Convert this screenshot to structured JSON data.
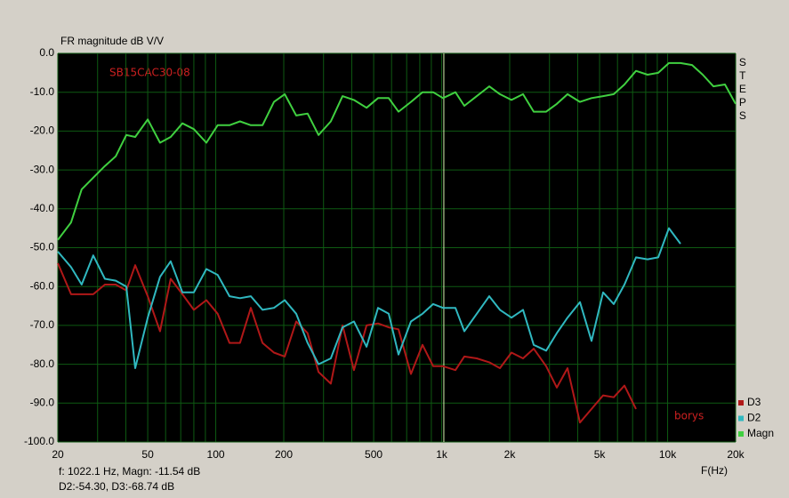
{
  "chart_data": {
    "type": "line",
    "title": "FR magnitude dB V/V",
    "xlabel": "F(Hz)",
    "right_label": "STEPS",
    "annotations": [
      "SB15CAC30-08",
      "borys"
    ],
    "status": [
      "f: 1022.1 Hz, Magn: -11.54 dB",
      "D2:-54.30, D3:-68.74 dB"
    ],
    "cursor": 1022.1,
    "xscale": "log",
    "xlim": [
      20,
      20000
    ],
    "ylim": [
      -100,
      0
    ],
    "xticks": [
      20,
      50,
      100,
      200,
      500,
      {
        "value": 1000,
        "label": "1k"
      },
      {
        "value": 2000,
        "label": "2k"
      },
      {
        "value": 5000,
        "label": "5k"
      },
      {
        "value": 10000,
        "label": "10k"
      },
      {
        "value": 20000,
        "label": "20k"
      }
    ],
    "xminorticks": [
      30,
      40,
      60,
      70,
      80,
      90,
      300,
      400,
      600,
      700,
      800,
      900,
      3000,
      4000,
      6000,
      7000,
      8000,
      9000
    ],
    "yticks": [
      {
        "value": 0,
        "label": "0.0"
      },
      {
        "value": -10,
        "label": "-10.0"
      },
      {
        "value": -20,
        "label": "-20.0"
      },
      {
        "value": -30,
        "label": "-30.0"
      },
      {
        "value": -40,
        "label": "-40.0"
      },
      {
        "value": -50,
        "label": "-50.0"
      },
      {
        "value": -60,
        "label": "-60.0"
      },
      {
        "value": -70,
        "label": "-70.0"
      },
      {
        "value": -80,
        "label": "-80.0"
      },
      {
        "value": -90,
        "label": "-90.0"
      },
      {
        "value": -100,
        "label": "-100.0"
      }
    ],
    "grid": true,
    "legend": "lower right",
    "x": [
      20,
      22.9,
      25.5,
      28.7,
      32.3,
      36.1,
      40.2,
      44,
      50,
      56.7,
      63.2,
      71.2,
      80,
      90.9,
      102,
      115,
      128,
      143,
      161,
      181,
      202,
      227,
      255,
      285,
      323,
      364,
      409,
      465,
      523,
      583,
      644,
      731,
      823,
      917,
      1013,
      1150,
      1260,
      1430,
      1623,
      1810,
      2037,
      2291,
      2554,
      2900,
      3234,
      3605,
      4093,
      4605,
      5182,
      5775,
      6439,
      7245,
      8152,
      9087,
      10131,
      11399,
      12828,
      14300,
      15943,
      17944,
      20000
    ],
    "series": [
      {
        "name": "D3",
        "color": "#b01818",
        "values": [
          -54,
          -62,
          -62,
          -62,
          -59.5,
          -59.5,
          -61,
          -54.5,
          -62.5,
          -71.5,
          -58,
          -62,
          -66,
          -63.5,
          -67,
          -74.5,
          -74.5,
          -65.5,
          -74.5,
          -77,
          -78,
          -69,
          -72,
          -82,
          -85,
          -70,
          -81.5,
          -70,
          -69.5,
          -70.5,
          -71,
          -82.5,
          -75,
          -80.5,
          -80.5,
          -81.5,
          -78,
          -78.5,
          -79.5,
          -81,
          -77,
          -78.5,
          -76,
          -80.5,
          -86,
          -81,
          -95,
          -91.5,
          -88,
          -88.5,
          -85.5,
          -91.5,
          null,
          null,
          null,
          null,
          null,
          null,
          null,
          null,
          null
        ]
      },
      {
        "name": "D2",
        "color": "#30b8c0",
        "values": [
          -51,
          -55,
          -59.5,
          -52,
          -58,
          -58.5,
          -60,
          -81,
          -68,
          -57.5,
          -53.5,
          -61.5,
          -61.5,
          -55.5,
          -57,
          -62.5,
          -63,
          -62.5,
          -66,
          -65.5,
          -63.5,
          -67,
          -74.5,
          -80,
          -78.5,
          -70.5,
          -69,
          -75.5,
          -65.5,
          -67,
          -77.5,
          -69,
          -67,
          -64.5,
          -65.5,
          -65.5,
          -71.5,
          -67,
          -62.5,
          -66,
          -68,
          -66,
          -75,
          -76.5,
          -72,
          -68,
          -64,
          -74,
          -61.5,
          -64.5,
          -59.5,
          -52.5,
          -53,
          -52.5,
          -45,
          -49,
          null,
          null,
          null,
          null,
          null
        ]
      },
      {
        "name": "Magn",
        "color": "#40d040",
        "values": [
          -48,
          -43.5,
          -35,
          -32,
          -29,
          -26.5,
          -21,
          -21.5,
          -17,
          -23,
          -21.5,
          -18,
          -19.5,
          -23,
          -18.5,
          -18.5,
          -17.5,
          -18.5,
          -18.5,
          -12.5,
          -10.5,
          -16,
          -15.5,
          -21,
          -17.5,
          -11,
          -12,
          -14,
          -11.5,
          -11.5,
          -15,
          -12.5,
          -10,
          -10,
          -11.5,
          -10,
          -13.5,
          -11,
          -8.5,
          -10.5,
          -12,
          -10.5,
          -15,
          -15,
          -13,
          -10.5,
          -12.5,
          -11.5,
          -11,
          -10.5,
          -8,
          -4.5,
          -5.5,
          -5,
          -2.5,
          -2.5,
          -3,
          -5.5,
          -8.5,
          -8,
          -13
        ]
      }
    ]
  }
}
